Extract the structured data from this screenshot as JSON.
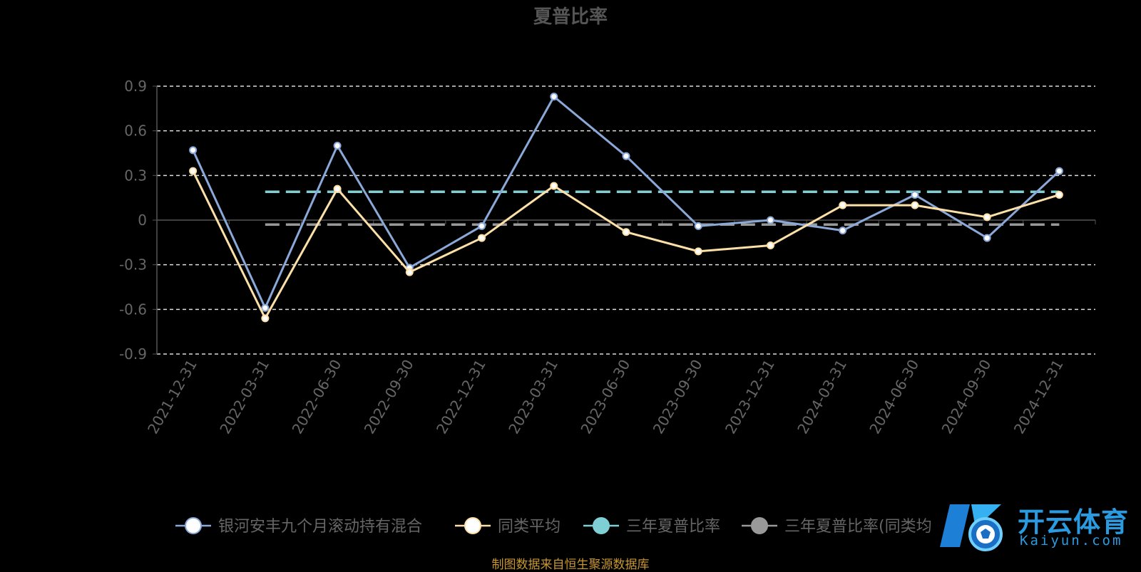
{
  "chart_data": {
    "type": "line",
    "title": "夏普比率",
    "categories": [
      "2021-12-31",
      "2022-03-31",
      "2022-06-30",
      "2022-09-30",
      "2022-12-31",
      "2023-03-31",
      "2023-06-30",
      "2023-09-30",
      "2023-12-31",
      "2024-03-31",
      "2024-06-30",
      "2024-09-30",
      "2024-12-31"
    ],
    "ylim": [
      -0.9,
      0.9
    ],
    "yticks": [
      "0.9",
      "0.6",
      "0.3",
      "0",
      "-0.3",
      "-0.6",
      "-0.9"
    ],
    "grid": true,
    "legend_position": "bottom",
    "series": [
      {
        "name": "银河安丰九个月滚动持有混合",
        "color": "#8aa8d8",
        "style": "line",
        "values": [
          0.47,
          -0.59,
          0.5,
          -0.32,
          -0.04,
          0.83,
          0.43,
          -0.04,
          0.0,
          -0.07,
          0.17,
          -0.12,
          0.33
        ]
      },
      {
        "name": "同类平均",
        "color": "#fde0a8",
        "style": "line",
        "values": [
          0.33,
          -0.66,
          0.21,
          -0.35,
          -0.12,
          0.23,
          -0.08,
          -0.21,
          -0.17,
          0.1,
          0.1,
          0.02,
          0.17
        ]
      },
      {
        "name": "三年夏普比率",
        "color": "#7fd0d4",
        "style": "dashed",
        "constant": 0.19,
        "from_index": 1,
        "to_index": 12
      },
      {
        "name": "三年夏普比率(同类均",
        "color": "#999999",
        "style": "dashed",
        "constant": -0.03,
        "from_index": 1,
        "to_index": 12
      }
    ]
  },
  "source_text": "制图数据来自恒生聚源数据库",
  "watermark": {
    "main": "开云体育",
    "sub": "Kaiyun.com"
  }
}
